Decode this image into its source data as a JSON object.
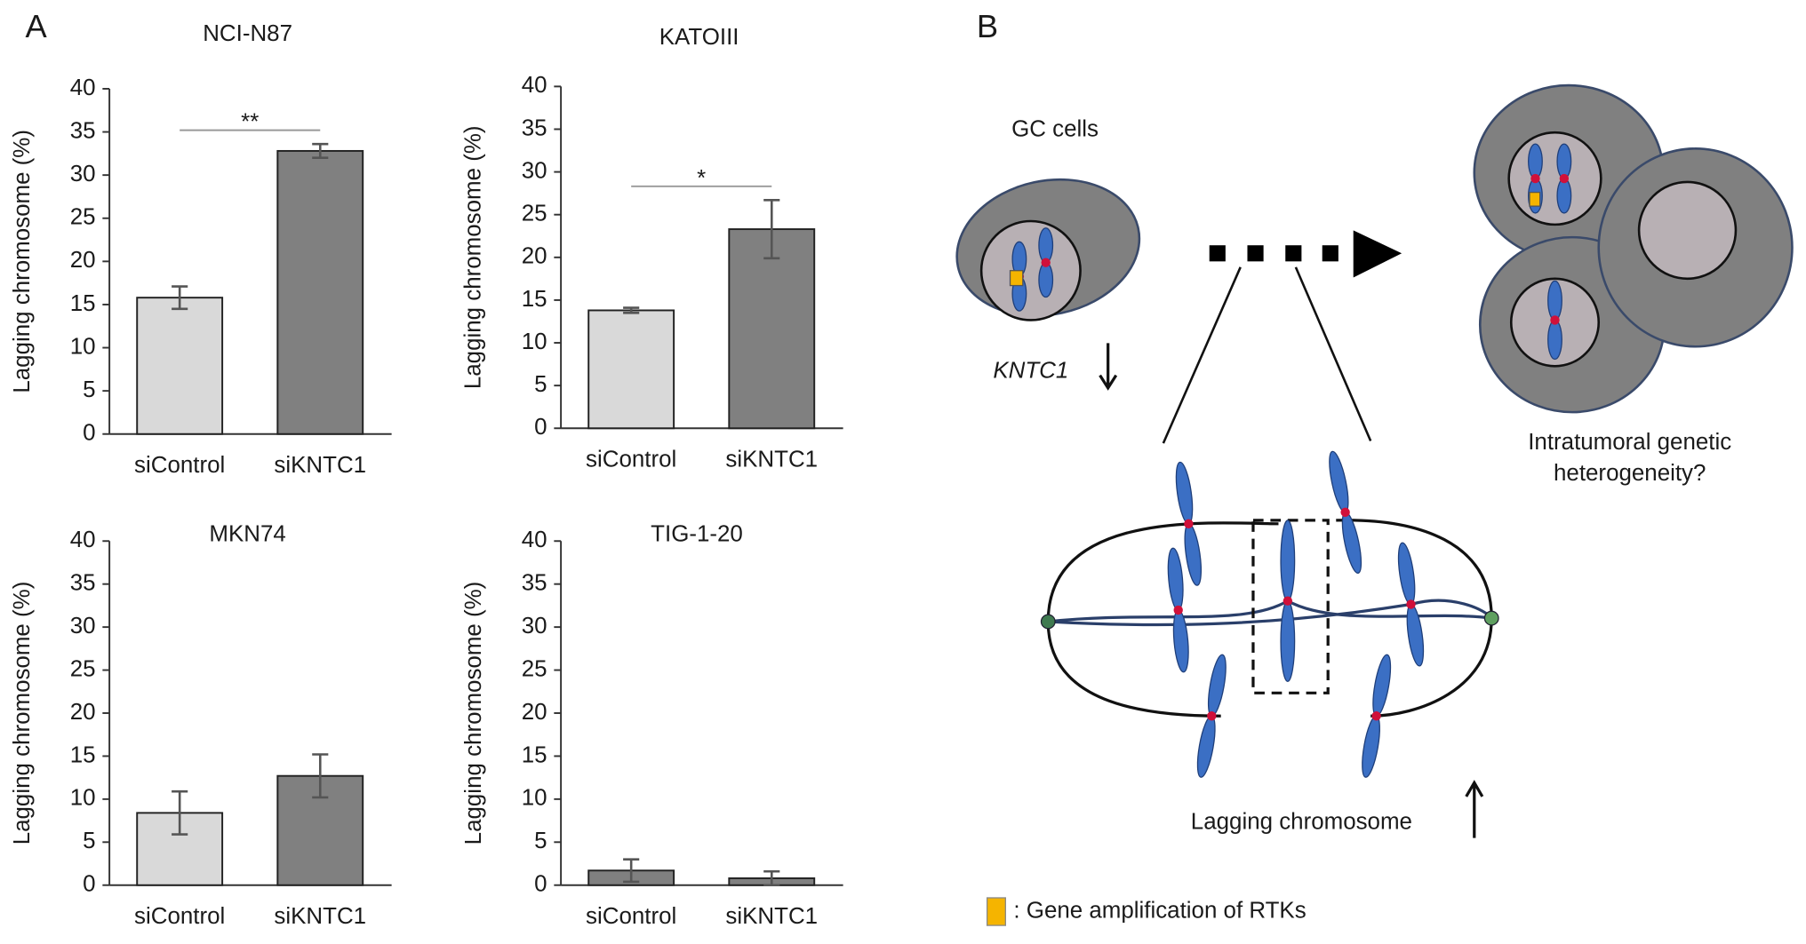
{
  "panels": {
    "a": "A",
    "b": "B"
  },
  "chart_data": [
    {
      "type": "bar",
      "title": "NCI-N87",
      "ylabel": "Lagging chromosome (%)",
      "categories": [
        "siControl",
        "siKNTC1"
      ],
      "values": [
        15.8,
        32.8
      ],
      "errors": [
        1.3,
        0.8
      ],
      "colors": [
        "#d9d9d9",
        "#808080"
      ],
      "ylim": [
        0,
        40
      ],
      "yticks": [
        0,
        5,
        10,
        15,
        20,
        25,
        30,
        35,
        40
      ],
      "significance": "**"
    },
    {
      "type": "bar",
      "title": "KATOIII",
      "ylabel": "Lagging chromosome (%)",
      "categories": [
        "siControl",
        "siKNTC1"
      ],
      "values": [
        13.8,
        23.3
      ],
      "errors": [
        0.3,
        3.4
      ],
      "colors": [
        "#d9d9d9",
        "#808080"
      ],
      "ylim": [
        0,
        40
      ],
      "yticks": [
        0,
        5,
        10,
        15,
        20,
        25,
        30,
        35,
        40
      ],
      "significance": "*"
    },
    {
      "type": "bar",
      "title": "MKN74",
      "ylabel": "Lagging chromosome (%)",
      "categories": [
        "siControl",
        "siKNTC1"
      ],
      "values": [
        8.4,
        12.7
      ],
      "errors": [
        2.5,
        2.5
      ],
      "colors": [
        "#d9d9d9",
        "#808080"
      ],
      "ylim": [
        0,
        40
      ],
      "yticks": [
        0,
        5,
        10,
        15,
        20,
        25,
        30,
        35,
        40
      ]
    },
    {
      "type": "bar",
      "title": "TIG-1-20",
      "ylabel": "Lagging chromosome (%)",
      "categories": [
        "siControl",
        "siKNTC1"
      ],
      "values": [
        1.7,
        0.8
      ],
      "errors": [
        1.3,
        0.8
      ],
      "colors": [
        "#808080",
        "#808080"
      ],
      "ylim": [
        0,
        40
      ],
      "yticks": [
        0,
        5,
        10,
        15,
        20,
        25,
        30,
        35,
        40
      ]
    }
  ],
  "diagram": {
    "gc_cells": "GC cells",
    "gene": "KNTC1",
    "outcome": [
      "Intratumoral genetic",
      "heterogeneity?"
    ],
    "lagging": "Lagging chromosome",
    "legend": ": Gene amplification of RTKs"
  }
}
